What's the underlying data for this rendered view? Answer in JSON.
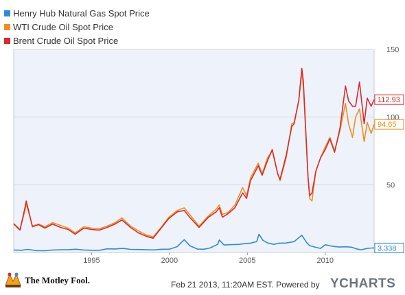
{
  "chart_data": {
    "type": "line",
    "ylim": [
      0,
      150
    ],
    "xlim": [
      1990.0,
      2013.14
    ],
    "x_ticks": [
      {
        "value": 1995,
        "label": "1995"
      },
      {
        "value": 2000,
        "label": "2000"
      },
      {
        "value": 2005,
        "label": "2005"
      },
      {
        "value": 2010,
        "label": "2010"
      }
    ],
    "y_ticks": [
      {
        "value": 50,
        "label": "50"
      },
      {
        "value": 100,
        "label": "100"
      },
      {
        "value": 150,
        "label": "150"
      }
    ],
    "grid": "horizontal",
    "legend_placement": "top-left",
    "series": [
      {
        "name": "Henry Hub Natural Gas Spot Price",
        "color": "#2e8bd6",
        "end_label": "3.338",
        "points": [
          [
            1990.0,
            1.8
          ],
          [
            1990.5,
            1.6
          ],
          [
            1990.9,
            2.3
          ],
          [
            1991.5,
            1.3
          ],
          [
            1992.0,
            1.3
          ],
          [
            1992.5,
            1.8
          ],
          [
            1993.0,
            2.0
          ],
          [
            1993.5,
            2.1
          ],
          [
            1994.0,
            2.4
          ],
          [
            1994.5,
            1.8
          ],
          [
            1995.0,
            1.6
          ],
          [
            1995.5,
            1.6
          ],
          [
            1996.0,
            2.7
          ],
          [
            1996.5,
            2.6
          ],
          [
            1997.0,
            3.0
          ],
          [
            1997.5,
            2.3
          ],
          [
            1998.0,
            2.2
          ],
          [
            1998.5,
            2.0
          ],
          [
            1999.0,
            1.9
          ],
          [
            1999.5,
            2.4
          ],
          [
            2000.0,
            2.4
          ],
          [
            2000.5,
            4.3
          ],
          [
            2000.95,
            9.5
          ],
          [
            2001.3,
            5.0
          ],
          [
            2001.8,
            2.5
          ],
          [
            2002.2,
            2.4
          ],
          [
            2002.6,
            3.3
          ],
          [
            2003.1,
            6.0
          ],
          [
            2003.2,
            9.2
          ],
          [
            2003.5,
            5.5
          ],
          [
            2004.0,
            5.8
          ],
          [
            2004.5,
            6.0
          ],
          [
            2004.8,
            6.5
          ],
          [
            2005.2,
            6.9
          ],
          [
            2005.6,
            8.0
          ],
          [
            2005.75,
            13.5
          ],
          [
            2006.0,
            9.0
          ],
          [
            2006.3,
            7.0
          ],
          [
            2006.7,
            6.0
          ],
          [
            2007.0,
            6.8
          ],
          [
            2007.5,
            7.0
          ],
          [
            2008.0,
            8.0
          ],
          [
            2008.5,
            12.7
          ],
          [
            2008.8,
            7.5
          ],
          [
            2009.0,
            5.0
          ],
          [
            2009.4,
            3.8
          ],
          [
            2009.7,
            3.0
          ],
          [
            2010.0,
            5.7
          ],
          [
            2010.5,
            4.5
          ],
          [
            2010.9,
            4.0
          ],
          [
            2011.3,
            4.2
          ],
          [
            2011.7,
            3.9
          ],
          [
            2012.0,
            2.7
          ],
          [
            2012.3,
            2.0
          ],
          [
            2012.7,
            3.0
          ],
          [
            2013.0,
            3.3
          ],
          [
            2013.14,
            3.338
          ]
        ]
      },
      {
        "name": "WTI Crude Oil Spot Price",
        "color": "#f28e1c",
        "end_label": "94.65",
        "points": [
          [
            1990.0,
            21.5
          ],
          [
            1990.4,
            17.0
          ],
          [
            1990.7,
            30.0
          ],
          [
            1990.8,
            36.0
          ],
          [
            1990.95,
            30.0
          ],
          [
            1991.2,
            19.5
          ],
          [
            1991.6,
            21.0
          ],
          [
            1992.0,
            19.0
          ],
          [
            1992.5,
            22.0
          ],
          [
            1993.0,
            20.0
          ],
          [
            1993.5,
            18.0
          ],
          [
            1993.95,
            14.5
          ],
          [
            1994.5,
            19.0
          ],
          [
            1995.0,
            18.0
          ],
          [
            1995.5,
            17.5
          ],
          [
            1996.0,
            19.5
          ],
          [
            1996.5,
            22.0
          ],
          [
            1996.95,
            25.5
          ],
          [
            1997.5,
            19.5
          ],
          [
            1998.0,
            16.0
          ],
          [
            1998.5,
            13.0
          ],
          [
            1998.95,
            11.5
          ],
          [
            1999.5,
            19.0
          ],
          [
            1999.95,
            26.0
          ],
          [
            2000.5,
            31.0
          ],
          [
            2000.95,
            33.0
          ],
          [
            2001.3,
            28.0
          ],
          [
            2001.9,
            19.5
          ],
          [
            2002.5,
            27.0
          ],
          [
            2003.0,
            32.0
          ],
          [
            2003.2,
            35.0
          ],
          [
            2003.4,
            28.0
          ],
          [
            2003.8,
            30.0
          ],
          [
            2004.2,
            35.0
          ],
          [
            2004.7,
            48.0
          ],
          [
            2004.95,
            42.0
          ],
          [
            2005.2,
            55.0
          ],
          [
            2005.7,
            66.0
          ],
          [
            2005.95,
            58.0
          ],
          [
            2006.3,
            70.0
          ],
          [
            2006.6,
            75.0
          ],
          [
            2006.95,
            58.0
          ],
          [
            2007.1,
            53.0
          ],
          [
            2007.5,
            70.0
          ],
          [
            2007.85,
            95.0
          ],
          [
            2008.0,
            96.0
          ],
          [
            2008.3,
            112.0
          ],
          [
            2008.5,
            133.0
          ],
          [
            2008.6,
            122.0
          ],
          [
            2008.9,
            55.0
          ],
          [
            2009.0,
            40.0
          ],
          [
            2009.15,
            38.0
          ],
          [
            2009.4,
            60.0
          ],
          [
            2009.7,
            70.0
          ],
          [
            2010.0,
            78.0
          ],
          [
            2010.3,
            85.0
          ],
          [
            2010.6,
            75.0
          ],
          [
            2010.95,
            90.0
          ],
          [
            2011.3,
            110.0
          ],
          [
            2011.5,
            95.0
          ],
          [
            2011.75,
            85.0
          ],
          [
            2011.95,
            100.0
          ],
          [
            2012.2,
            106.0
          ],
          [
            2012.5,
            82.0
          ],
          [
            2012.7,
            96.0
          ],
          [
            2012.95,
            88.0
          ],
          [
            2013.14,
            94.65
          ]
        ]
      },
      {
        "name": "Brent Crude Oil Spot Price",
        "color": "#d92b2b",
        "end_label": "112.93",
        "points": [
          [
            1990.0,
            21.0
          ],
          [
            1990.4,
            16.5
          ],
          [
            1990.7,
            32.0
          ],
          [
            1990.8,
            38.0
          ],
          [
            1990.95,
            31.0
          ],
          [
            1991.2,
            19.0
          ],
          [
            1991.6,
            20.5
          ],
          [
            1992.0,
            18.0
          ],
          [
            1992.5,
            21.0
          ],
          [
            1993.0,
            18.5
          ],
          [
            1993.5,
            17.0
          ],
          [
            1993.95,
            13.5
          ],
          [
            1994.5,
            18.0
          ],
          [
            1995.0,
            17.0
          ],
          [
            1995.5,
            16.5
          ],
          [
            1996.0,
            18.5
          ],
          [
            1996.5,
            21.0
          ],
          [
            1996.95,
            24.0
          ],
          [
            1997.5,
            18.5
          ],
          [
            1998.0,
            14.5
          ],
          [
            1998.5,
            12.0
          ],
          [
            1998.95,
            10.5
          ],
          [
            1999.5,
            18.5
          ],
          [
            1999.95,
            25.0
          ],
          [
            2000.5,
            30.0
          ],
          [
            2000.95,
            31.0
          ],
          [
            2001.3,
            26.0
          ],
          [
            2001.9,
            18.5
          ],
          [
            2002.5,
            26.0
          ],
          [
            2003.0,
            30.0
          ],
          [
            2003.2,
            33.0
          ],
          [
            2003.4,
            26.0
          ],
          [
            2003.8,
            29.0
          ],
          [
            2004.2,
            33.0
          ],
          [
            2004.7,
            44.0
          ],
          [
            2004.95,
            40.0
          ],
          [
            2005.2,
            53.0
          ],
          [
            2005.7,
            64.0
          ],
          [
            2005.95,
            57.0
          ],
          [
            2006.3,
            68.0
          ],
          [
            2006.6,
            76.0
          ],
          [
            2006.95,
            58.0
          ],
          [
            2007.1,
            54.0
          ],
          [
            2007.5,
            72.0
          ],
          [
            2007.85,
            93.0
          ],
          [
            2008.0,
            95.0
          ],
          [
            2008.3,
            112.0
          ],
          [
            2008.5,
            136.0
          ],
          [
            2008.6,
            126.0
          ],
          [
            2008.9,
            55.0
          ],
          [
            2009.0,
            42.0
          ],
          [
            2009.15,
            44.0
          ],
          [
            2009.4,
            60.0
          ],
          [
            2009.7,
            70.0
          ],
          [
            2010.0,
            76.0
          ],
          [
            2010.3,
            84.0
          ],
          [
            2010.6,
            74.0
          ],
          [
            2010.95,
            92.0
          ],
          [
            2011.3,
            123.0
          ],
          [
            2011.5,
            112.0
          ],
          [
            2011.75,
            108.0
          ],
          [
            2011.95,
            108.0
          ],
          [
            2012.2,
            126.0
          ],
          [
            2012.5,
            95.0
          ],
          [
            2012.7,
            114.0
          ],
          [
            2012.95,
            108.0
          ],
          [
            2013.14,
            112.93
          ]
        ]
      }
    ]
  },
  "footer": {
    "source_text": "Feb 21 2013, 11:20AM EST. Powered by",
    "brand": "YCHARTS",
    "logo_text": "The Motley Fool."
  }
}
